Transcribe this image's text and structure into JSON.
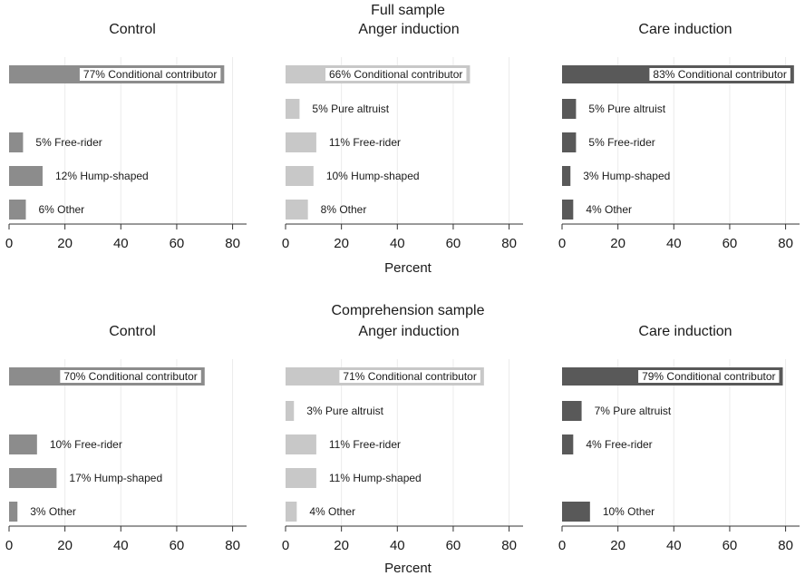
{
  "colors": {
    "control": "#8c8c8c",
    "anger": "#c8c8c8",
    "care": "#595959",
    "grid": "#ebebeb",
    "axis": "#333333"
  },
  "chart_data": [
    {
      "type": "bar",
      "orientation": "horizontal",
      "section_title": "Full sample",
      "xlabel": "Percent",
      "xlim": [
        0,
        85
      ],
      "xticks": [
        0,
        20,
        40,
        60,
        80
      ],
      "grid": true,
      "categories": [
        "Conditional contributor",
        "Pure altruist",
        "Free-rider",
        "Hump-shaped",
        "Other"
      ],
      "panels": [
        {
          "name": "Control",
          "color_key": "control",
          "bars": [
            {
              "value": 77,
              "label": "77% Conditional contributor"
            },
            {
              "value": 0,
              "label": ""
            },
            {
              "value": 5,
              "label": "5% Free-rider"
            },
            {
              "value": 12,
              "label": "12% Hump-shaped"
            },
            {
              "value": 6,
              "label": "6% Other"
            }
          ]
        },
        {
          "name": "Anger induction",
          "color_key": "anger",
          "bars": [
            {
              "value": 66,
              "label": "66% Conditional contributor"
            },
            {
              "value": 5,
              "label": "5% Pure altruist"
            },
            {
              "value": 11,
              "label": "11% Free-rider"
            },
            {
              "value": 10,
              "label": "10% Hump-shaped"
            },
            {
              "value": 8,
              "label": "8% Other"
            }
          ]
        },
        {
          "name": "Care induction",
          "color_key": "care",
          "bars": [
            {
              "value": 83,
              "label": "83% Conditional contributor"
            },
            {
              "value": 5,
              "label": "5% Pure altruist"
            },
            {
              "value": 5,
              "label": "5% Free-rider"
            },
            {
              "value": 3,
              "label": "3% Hump-shaped"
            },
            {
              "value": 4,
              "label": "4% Other"
            }
          ]
        }
      ]
    },
    {
      "type": "bar",
      "orientation": "horizontal",
      "section_title": "Comprehension sample",
      "xlabel": "Percent",
      "xlim": [
        0,
        85
      ],
      "xticks": [
        0,
        20,
        40,
        60,
        80
      ],
      "grid": true,
      "categories": [
        "Conditional contributor",
        "Pure altruist",
        "Free-rider",
        "Hump-shaped",
        "Other"
      ],
      "panels": [
        {
          "name": "Control",
          "color_key": "control",
          "bars": [
            {
              "value": 70,
              "label": "70% Conditional contributor"
            },
            {
              "value": 0,
              "label": ""
            },
            {
              "value": 10,
              "label": "10% Free-rider"
            },
            {
              "value": 17,
              "label": "17% Hump-shaped"
            },
            {
              "value": 3,
              "label": "3% Other"
            }
          ]
        },
        {
          "name": "Anger induction",
          "color_key": "anger",
          "bars": [
            {
              "value": 71,
              "label": "71% Conditional contributor"
            },
            {
              "value": 3,
              "label": "3% Pure altruist"
            },
            {
              "value": 11,
              "label": "11% Free-rider"
            },
            {
              "value": 11,
              "label": "11% Hump-shaped"
            },
            {
              "value": 4,
              "label": "4% Other"
            }
          ]
        },
        {
          "name": "Care induction",
          "color_key": "care",
          "bars": [
            {
              "value": 79,
              "label": "79% Conditional contributor"
            },
            {
              "value": 7,
              "label": "7% Pure altruist"
            },
            {
              "value": 4,
              "label": "4% Free-rider"
            },
            {
              "value": 0,
              "label": ""
            },
            {
              "value": 10,
              "label": "10% Other"
            }
          ]
        }
      ]
    }
  ]
}
